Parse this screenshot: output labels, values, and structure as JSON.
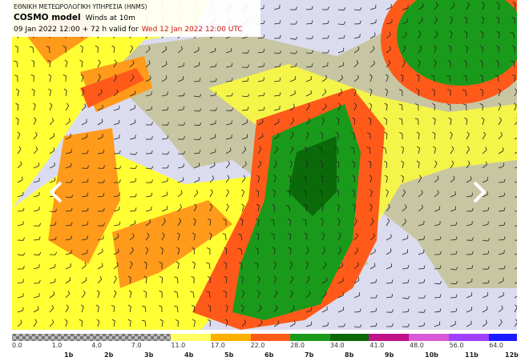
{
  "header": {
    "agency": "ΕΘΝΙΚΗ ΜΕΤΕΩΡΟΛΟΓΙΚΗ ΥΠΗΡΕΣΙΑ (HNMS)",
    "model": "COSMO model",
    "field": "Winds at 10m",
    "run": "09 Jan 2022 12:00 + 72 h valid for",
    "valid": "Wed 12 Jan 2022 12:00 UTC"
  },
  "colorbar": {
    "values": [
      "0.0",
      "1.0",
      "4.0",
      "7.0",
      "11.0",
      "17.0",
      "22.0",
      "28.0",
      "34.0",
      "41.0",
      "48.0",
      "56.0",
      "64.0"
    ],
    "beaufort": [
      "1b",
      "2b",
      "3b",
      "4b",
      "5b",
      "6b",
      "7b",
      "8b",
      "9b",
      "10b",
      "11b",
      "12b"
    ]
  }
}
